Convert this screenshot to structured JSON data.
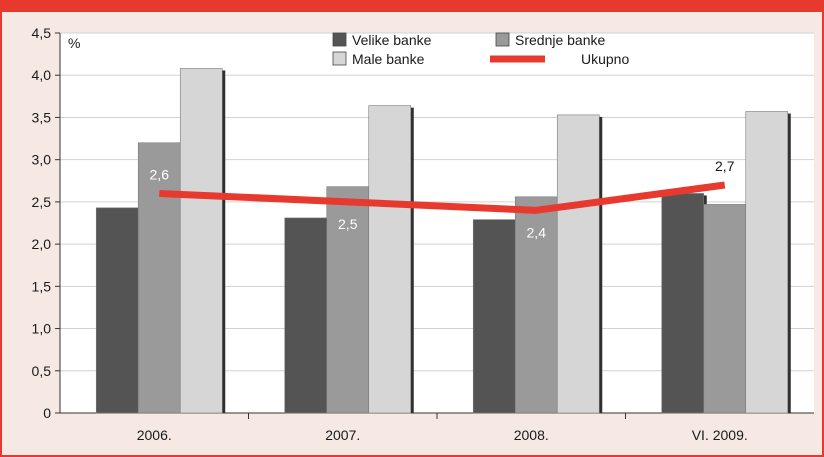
{
  "chart_data": {
    "type": "bar",
    "unit_label": "%",
    "categories": [
      "2006.",
      "2007.",
      "2008.",
      "VI. 2009."
    ],
    "series": [
      {
        "name": "Velike banke",
        "color": "#545454",
        "values": [
          2.43,
          2.31,
          2.29,
          2.6
        ]
      },
      {
        "name": "Srednje banke",
        "color": "#9a9a9a",
        "values": [
          3.2,
          2.68,
          2.56,
          2.47
        ]
      },
      {
        "name": "Male banke",
        "color": "#d6d6d6",
        "values": [
          4.08,
          3.64,
          3.53,
          3.57
        ]
      }
    ],
    "line_series": {
      "name": "Ukupno",
      "color": "#e8392f",
      "values": [
        2.6,
        2.5,
        2.4,
        2.7
      ],
      "labels": [
        "2,6",
        "2,5",
        "2,4",
        "2,7"
      ]
    },
    "ylim": [
      0,
      4.5
    ],
    "yticks": [
      0,
      0.5,
      1.0,
      1.5,
      2.0,
      2.5,
      3.0,
      3.5,
      4.0,
      4.5
    ],
    "ytick_labels": [
      "0",
      "0,5",
      "1,0",
      "1,5",
      "2,0",
      "2,5",
      "3,0",
      "3,5",
      "4,0",
      "4,5"
    ],
    "grid": true,
    "legend_position": "top-center"
  }
}
